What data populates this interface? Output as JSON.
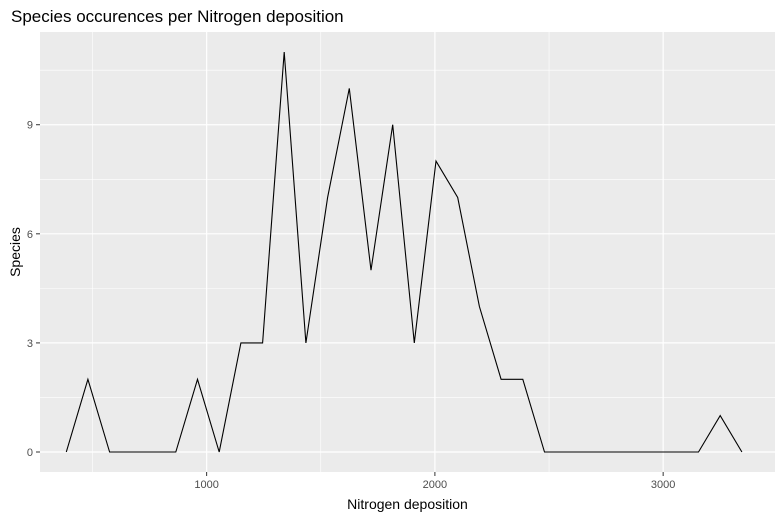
{
  "chart_data": {
    "type": "line",
    "title": "Species occurences per Nitrogen deposition",
    "xlabel": "Nitrogen deposition",
    "ylabel": "Species",
    "xlim": [
      270,
      3490
    ],
    "ylim": [
      -0.55,
      11.55
    ],
    "x_ticks": [
      1000,
      2000,
      3000
    ],
    "x_minor": [
      500,
      1500,
      2500,
      3500
    ],
    "y_ticks": [
      0,
      3,
      6,
      9
    ],
    "y_minor": [
      1.5,
      4.5,
      7.5,
      10.5
    ],
    "grid": true,
    "colors": {
      "panel": "#ebebeb",
      "grid": "#ffffff",
      "line": "#000000",
      "tick": "#4d4d4d"
    },
    "series": [
      {
        "x": [
          385,
          480,
          575,
          672,
          770,
          865,
          960,
          1055,
          1150,
          1245,
          1340,
          1435,
          1530,
          1625,
          1720,
          1815,
          1910,
          2005,
          2100,
          2195,
          2290,
          2385,
          2480,
          2580,
          2675,
          2770,
          2865,
          2965,
          3060,
          3155,
          3250,
          3345
        ],
        "y": [
          0,
          2,
          0,
          0,
          0,
          0,
          2,
          0,
          3,
          3,
          11,
          3,
          7,
          10,
          5,
          9,
          3,
          8,
          7,
          4,
          2,
          2,
          0,
          0,
          0,
          0,
          0,
          0,
          0,
          0,
          1,
          0
        ]
      }
    ]
  }
}
